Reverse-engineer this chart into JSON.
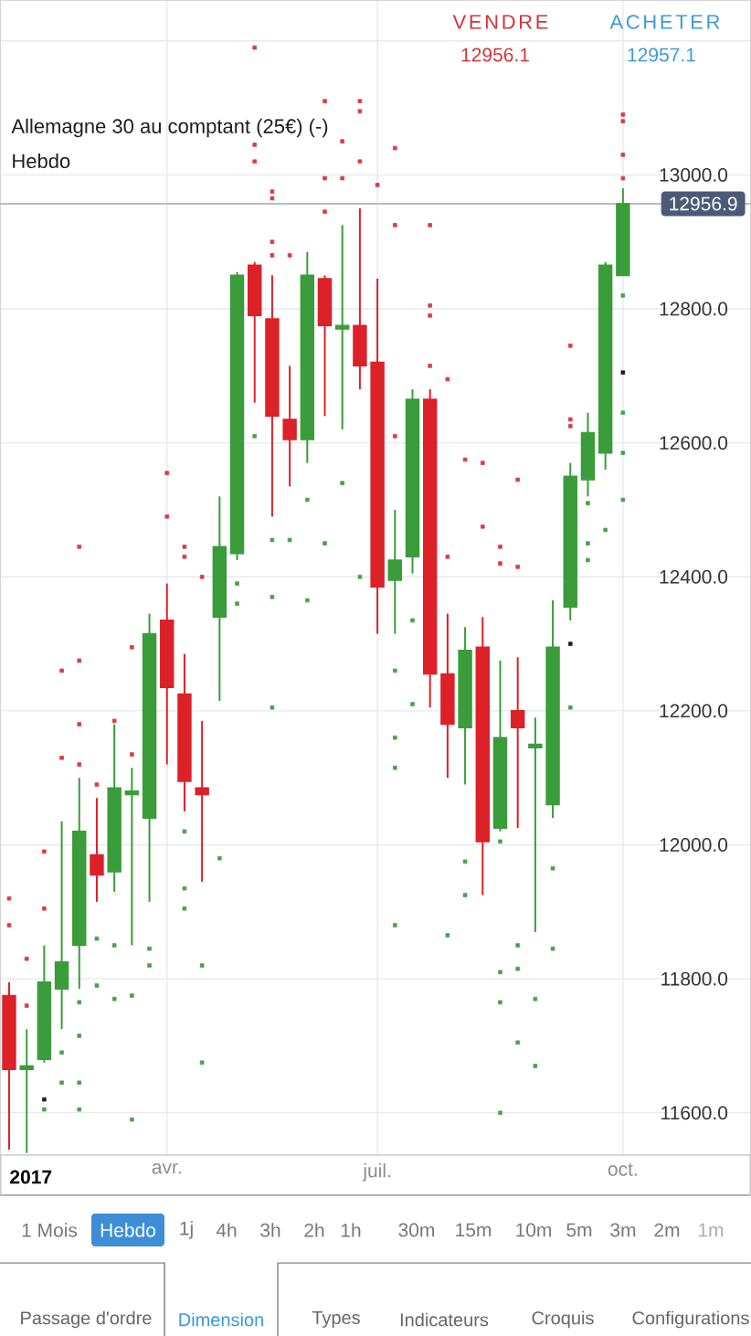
{
  "chart_data": {
    "type": "candlestick",
    "title": "Allemagne 30 au comptant (25€) (-)",
    "subtitle": "Hebdo",
    "categories": [
      null,
      null,
      null,
      null,
      null,
      null,
      null,
      null,
      null,
      "avr.",
      null,
      null,
      null,
      null,
      null,
      null,
      null,
      null,
      null,
      null,
      null,
      "juil.",
      null,
      null,
      null,
      null,
      null,
      null,
      null,
      null,
      null,
      null,
      null,
      null,
      null,
      "oct."
    ],
    "series": [
      {
        "type": "scatter",
        "color": "#dc3c44",
        "marker": "square",
        "values": [
          11920,
          11830,
          11990,
          12260,
          12445,
          12090,
          12185,
          12295,
          null,
          12555,
          12445,
          12400,
          null,
          null,
          13190,
          12975,
          12880,
          null,
          13110,
          13050,
          13110,
          12985,
          13040,
          null,
          12925,
          12695,
          12575,
          12570,
          12445,
          12545,
          null,
          null,
          12745,
          null,
          null,
          13090
        ]
      },
      {
        "type": "scatter",
        "color": "#dc3c44",
        "marker": "square",
        "values": [
          11880,
          11760,
          11905,
          12130,
          12275,
          null,
          null,
          12135,
          null,
          12490,
          12430,
          null,
          null,
          null,
          13045,
          12965,
          null,
          null,
          12995,
          12995,
          13095,
          null,
          12925,
          null,
          12805,
          12430,
          null,
          12475,
          12420,
          12415,
          null,
          null,
          12635,
          null,
          null,
          13080
        ]
      },
      {
        "type": "scatter",
        "color": "#dc3c44",
        "marker": "square",
        "values": [
          null,
          null,
          null,
          null,
          12180,
          null,
          null,
          null,
          null,
          null,
          null,
          null,
          null,
          null,
          13020,
          12900,
          null,
          null,
          12945,
          null,
          13020,
          null,
          12610,
          null,
          12790,
          null,
          null,
          null,
          null,
          null,
          null,
          null,
          12625,
          null,
          null,
          13030
        ]
      },
      {
        "type": "scatter",
        "color": "#dc3c44",
        "marker": "square",
        "values": [
          null,
          null,
          null,
          null,
          12120,
          null,
          null,
          null,
          null,
          null,
          null,
          null,
          null,
          null,
          null,
          12880,
          null,
          null,
          null,
          null,
          null,
          null,
          null,
          null,
          12715,
          null,
          null,
          null,
          null,
          null,
          null,
          null,
          null,
          null,
          null,
          12995
        ]
      },
      {
        "type": "scatter",
        "color": "#47a447",
        "marker": "square",
        "values": [
          null,
          null,
          null,
          11690,
          11765,
          11860,
          11850,
          11775,
          11845,
          null,
          12020,
          11820,
          11980,
          12390,
          12610,
          12455,
          12455,
          12515,
          12450,
          12540,
          12400,
          null,
          12260,
          12335,
          null,
          11865,
          11975,
          null,
          12005,
          11850,
          11770,
          11965,
          12205,
          12510,
          12470,
          12820
        ]
      },
      {
        "type": "scatter",
        "color": "#47a447",
        "marker": "square",
        "values": [
          null,
          null,
          11605,
          11645,
          11715,
          11790,
          11770,
          11590,
          11820,
          null,
          11935,
          11675,
          null,
          12360,
          null,
          12370,
          null,
          12365,
          null,
          null,
          null,
          null,
          12160,
          12210,
          null,
          null,
          11925,
          null,
          11810,
          11815,
          11670,
          11845,
          null,
          12450,
          null,
          12645
        ]
      },
      {
        "type": "scatter",
        "color": "#47a447",
        "marker": "square",
        "values": [
          null,
          null,
          null,
          null,
          11645,
          null,
          null,
          null,
          null,
          null,
          11905,
          null,
          null,
          null,
          null,
          12205,
          null,
          null,
          null,
          null,
          null,
          null,
          12115,
          null,
          null,
          null,
          null,
          null,
          11765,
          11705,
          null,
          null,
          null,
          12425,
          null,
          12585
        ]
      },
      {
        "type": "scatter",
        "color": "#47a447",
        "marker": "square",
        "values": [
          null,
          null,
          null,
          null,
          11605,
          null,
          null,
          null,
          null,
          null,
          null,
          null,
          null,
          null,
          null,
          null,
          null,
          null,
          null,
          null,
          null,
          null,
          11880,
          null,
          null,
          null,
          null,
          null,
          11600,
          null,
          null,
          null,
          null,
          null,
          null,
          12515
        ]
      },
      {
        "type": "scatter",
        "color": "#222222",
        "marker": "square",
        "values": [
          null,
          null,
          11620,
          null,
          null,
          null,
          null,
          null,
          null,
          null,
          null,
          null,
          null,
          null,
          null,
          null,
          null,
          null,
          null,
          null,
          null,
          null,
          null,
          null,
          null,
          null,
          null,
          null,
          null,
          null,
          null,
          null,
          12300,
          null,
          null,
          12705
        ]
      },
      {
        "ohlc": [
          [
            11775,
            11795,
            11545,
            11665
          ],
          [
            11665,
            11725,
            11540,
            11670
          ],
          [
            11680,
            11850,
            11675,
            11795
          ],
          [
            11785,
            12035,
            11725,
            11825
          ],
          [
            11850,
            12100,
            11785,
            12020
          ],
          [
            11985,
            12070,
            11915,
            11955
          ],
          [
            11960,
            12180,
            11930,
            12085
          ],
          [
            12075,
            12115,
            11850,
            12080
          ],
          [
            12040,
            12345,
            11915,
            12315
          ],
          [
            12335,
            12390,
            12120,
            12235
          ],
          [
            12225,
            12285,
            12050,
            12095
          ],
          [
            12085,
            12185,
            11945,
            12075
          ],
          [
            12340,
            12520,
            12215,
            12445
          ],
          [
            12435,
            12855,
            12425,
            12850
          ],
          [
            12865,
            12870,
            12660,
            12790
          ],
          [
            12785,
            12850,
            12490,
            12640
          ],
          [
            12635,
            12715,
            12535,
            12605
          ],
          [
            12605,
            12885,
            12570,
            12850
          ],
          [
            12845,
            12850,
            12640,
            12775
          ],
          [
            12770,
            12925,
            12620,
            12775
          ],
          [
            12775,
            12950,
            12680,
            12715
          ],
          [
            12720,
            12845,
            12315,
            12385
          ],
          [
            12395,
            12500,
            12315,
            12425
          ],
          [
            12430,
            12680,
            12405,
            12665
          ],
          [
            12665,
            12680,
            12205,
            12255
          ],
          [
            12255,
            12345,
            12100,
            12180
          ],
          [
            12175,
            12325,
            12090,
            12290
          ],
          [
            12295,
            12340,
            11925,
            12005
          ],
          [
            12025,
            12275,
            12020,
            12160
          ],
          [
            12200,
            12280,
            12025,
            12175
          ],
          [
            12145,
            12190,
            11870,
            12150
          ],
          [
            12060,
            12365,
            12040,
            12295
          ],
          [
            12355,
            12570,
            12335,
            12550
          ],
          [
            12545,
            12645,
            12520,
            12615
          ],
          [
            12585,
            12870,
            12560,
            12865
          ],
          [
            12850,
            12980,
            12850,
            12956.9
          ]
        ],
        "colors": [
          "#dc2128",
          "#3a9c3a",
          "#3a9c3a",
          "#3a9c3a",
          "#3a9c3a",
          "#dc2128",
          "#3a9c3a",
          "#3a9c3a",
          "#3a9c3a",
          "#dc2128",
          "#dc2128",
          "#dc2128",
          "#3a9c3a",
          "#3a9c3a",
          "#dc2128",
          "#dc2128",
          "#dc2128",
          "#3a9c3a",
          "#dc2128",
          "#3a9c3a",
          "#dc2128",
          "#dc2128",
          "#3a9c3a",
          "#3a9c3a",
          "#dc2128",
          "#dc2128",
          "#3a9c3a",
          "#dc2128",
          "#3a9c3a",
          "#dc2128",
          "#3a9c3a",
          "#3a9c3a",
          "#3a9c3a",
          "#3a9c3a",
          "#3a9c3a",
          "#3a9c3a"
        ]
      }
    ],
    "ylim": [
      11537,
      13261
    ],
    "yticks": [
      {
        "value": 11600,
        "label": "11600.0"
      },
      {
        "value": 11800,
        "label": "11800.0"
      },
      {
        "value": 12000,
        "label": "12000.0"
      },
      {
        "value": 12200,
        "label": "12200.0"
      },
      {
        "value": 12400,
        "label": "12400.0"
      },
      {
        "value": 12600,
        "label": "12600.0"
      },
      {
        "value": 12800,
        "label": "12800.0"
      },
      {
        "value": 13000,
        "label": "13000.0"
      },
      {
        "value": 13200,
        "label": null
      }
    ],
    "grid": true,
    "ref_lines": [
      {
        "axis": "y",
        "value": 12956.9,
        "label": "12956.9",
        "color": "#b9bdca"
      }
    ],
    "annotations": [
      "2017",
      "VENDRE",
      "12956.1",
      "ACHETER",
      "12957.1",
      "1 Mois",
      "Hebdo",
      "1j",
      "4h",
      "3h",
      "2h",
      "1h",
      "30m",
      "15m",
      "10m",
      "5m",
      "3m",
      "2m",
      "1m",
      "Passage d'ordre",
      "Dimension",
      "Types",
      "Indicateurs",
      "Croquis",
      "Configurations"
    ]
  }
}
